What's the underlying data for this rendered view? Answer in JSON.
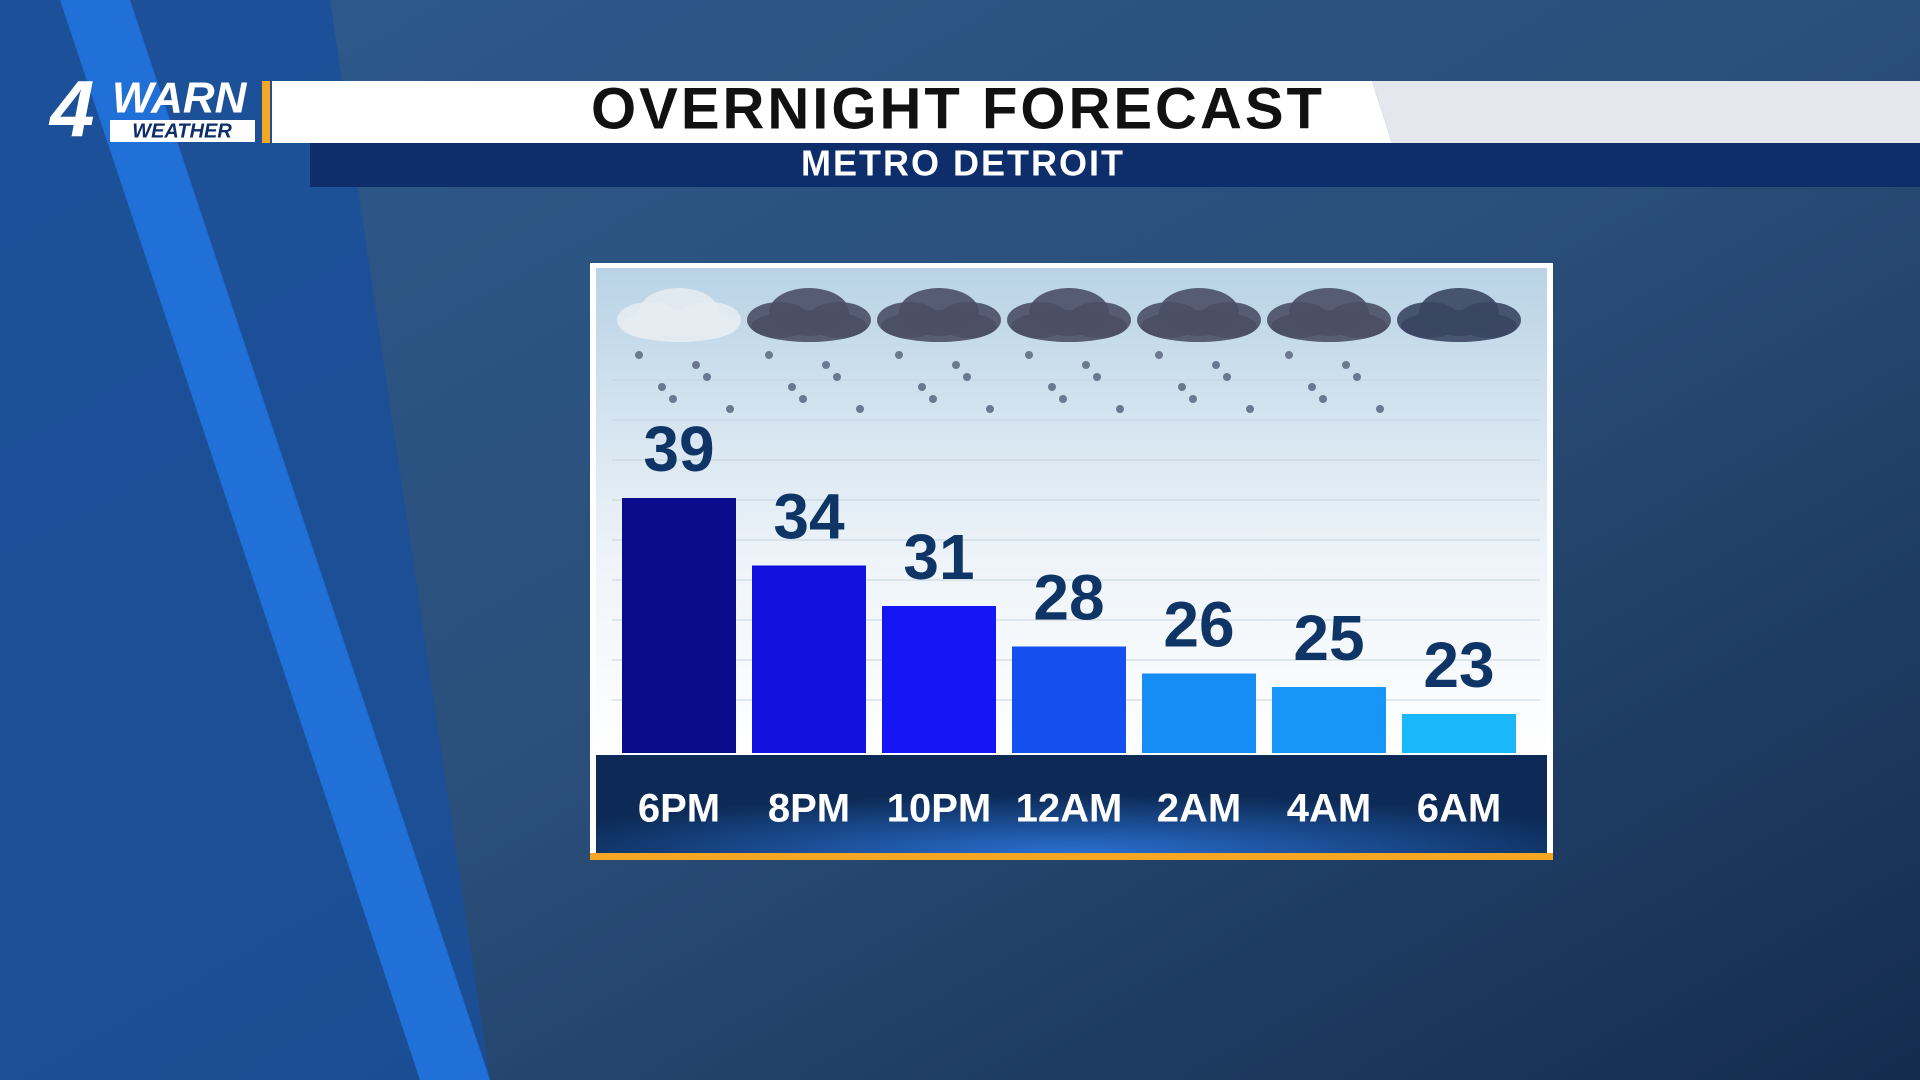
{
  "logo": {
    "number": "4",
    "word": "WARN",
    "sub": "WEATHER"
  },
  "chart_data": {
    "type": "bar",
    "title": "OVERNIGHT FORECAST",
    "subtitle": "METRO DETROIT",
    "categories": [
      "6PM",
      "8PM",
      "10PM",
      "12AM",
      "2AM",
      "4AM",
      "6AM"
    ],
    "values": [
      39,
      34,
      31,
      28,
      26,
      25,
      23
    ],
    "colors": [
      "#0a0c8c",
      "#1212e0",
      "#1515f5",
      "#1450f0",
      "#168cf5",
      "#1896f8",
      "#1ab8fb"
    ]
  }
}
